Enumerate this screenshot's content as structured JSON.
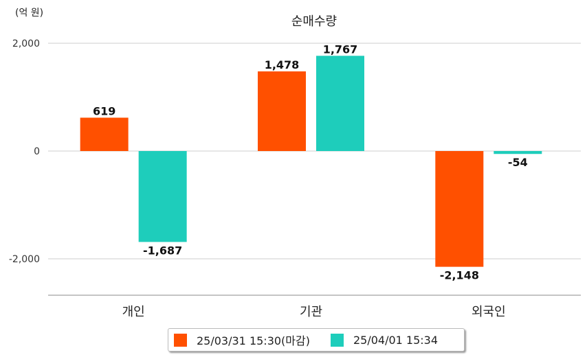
{
  "chart_data": {
    "type": "bar",
    "title": "순매수량",
    "ylabel": "(억 원)",
    "xlabel": "",
    "categories": [
      "개인",
      "기관",
      "외국인"
    ],
    "series": [
      {
        "name": "25/03/31 15:30(마감)",
        "color": "#ff5000",
        "values": [
          619,
          1478,
          -2148
        ],
        "labels": [
          "619",
          "1,478",
          "-2,148"
        ]
      },
      {
        "name": "25/04/01 15:34",
        "color": "#1ecdbb",
        "values": [
          -1687,
          1767,
          -54
        ],
        "labels": [
          "-1,687",
          "1,767",
          "-54"
        ]
      }
    ],
    "yticks": [
      2000,
      0,
      -2000
    ],
    "ytick_labels": [
      "2,000",
      "0",
      "-2,000"
    ],
    "ylim": [
      -2675,
      2250
    ],
    "grid": true,
    "legend_position": "bottom"
  }
}
